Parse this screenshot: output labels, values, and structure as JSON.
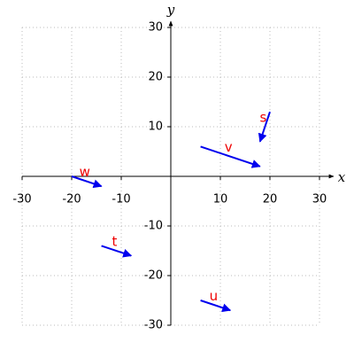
{
  "chart_data": {
    "type": "vector",
    "xlabel": "x",
    "ylabel": "y",
    "xlim": [
      -30,
      30
    ],
    "ylim": [
      -30,
      30
    ],
    "xticks": [
      -30,
      -20,
      -10,
      10,
      20,
      30
    ],
    "yticks": [
      -30,
      -20,
      -10,
      10,
      20,
      30
    ],
    "grid": true,
    "color": "#0000ee",
    "label_color": "#ee0000",
    "vectors": [
      {
        "name": "s",
        "x": [
          20,
          18
        ],
        "y": [
          13,
          7
        ]
      },
      {
        "name": "v",
        "x": [
          6,
          18
        ],
        "y": [
          6,
          2
        ]
      },
      {
        "name": "w",
        "x": [
          -20,
          -14
        ],
        "y": [
          0,
          -2
        ]
      },
      {
        "name": "t",
        "x": [
          -14,
          -8
        ],
        "y": [
          -14,
          -16
        ]
      },
      {
        "name": "u",
        "x": [
          6,
          12
        ],
        "y": [
          -25,
          -27
        ]
      }
    ]
  }
}
